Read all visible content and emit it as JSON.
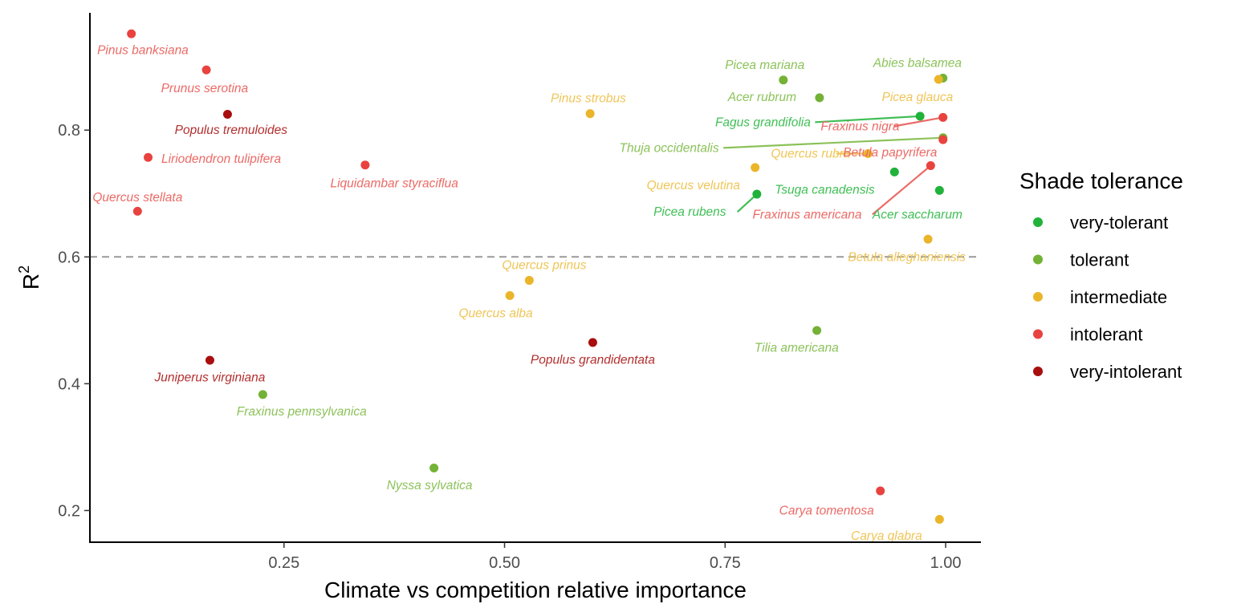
{
  "chart_data": {
    "type": "scatter",
    "xlabel": "Climate vs competition relative importance",
    "ylabel_base": "R",
    "ylabel_sup": "2",
    "xlim": [
      0.03,
      1.04
    ],
    "ylim": [
      0.15,
      0.985
    ],
    "x_ticks": [
      0.25,
      0.5,
      0.75,
      1.0
    ],
    "x_tick_labels": [
      "0.25",
      "0.50",
      "0.75",
      "1.00"
    ],
    "y_ticks": [
      0.2,
      0.4,
      0.6,
      0.8
    ],
    "y_tick_labels": [
      "0.2",
      "0.4",
      "0.6",
      "0.8"
    ],
    "reference_line_y": 0.6,
    "grid": false,
    "legend": {
      "title": "Shade tolerance",
      "position": "right",
      "entries": [
        {
          "key": "very-tolerant",
          "label": "very-tolerant"
        },
        {
          "key": "tolerant",
          "label": "tolerant"
        },
        {
          "key": "intermediate",
          "label": "intermediate"
        },
        {
          "key": "intolerant",
          "label": "intolerant"
        },
        {
          "key": "very-intolerant",
          "label": "very-intolerant"
        }
      ]
    },
    "colors": {
      "very-tolerant": {
        "point": "#20b23a",
        "label": "#3fbf55"
      },
      "tolerant": {
        "point": "#73b236",
        "label": "#8cc25a"
      },
      "intermediate": {
        "point": "#ebb52a",
        "label": "#efc557"
      },
      "intolerant": {
        "point": "#e8433f",
        "label": "#eb6a66"
      },
      "very-intolerant": {
        "point": "#a80e0e",
        "label": "#b32e2e"
      }
    },
    "points": [
      {
        "name": "Pinus banksiana",
        "x": 0.077,
        "y": 0.952,
        "tol": "intolerant",
        "lx": 0.09,
        "ly": 0.926,
        "anchor": "middle"
      },
      {
        "name": "Prunus serotina",
        "x": 0.162,
        "y": 0.895,
        "tol": "intolerant",
        "lx": 0.16,
        "ly": 0.866,
        "anchor": "middle"
      },
      {
        "name": "Populus tremuloides",
        "x": 0.186,
        "y": 0.825,
        "tol": "very-intolerant",
        "lx": 0.19,
        "ly": 0.8,
        "anchor": "middle"
      },
      {
        "name": "Liriodendron tulipifera",
        "x": 0.096,
        "y": 0.757,
        "tol": "intolerant",
        "lx": 0.111,
        "ly": 0.755,
        "anchor": "start"
      },
      {
        "name": "Quercus stellata",
        "x": 0.084,
        "y": 0.672,
        "tol": "intolerant",
        "lx": 0.084,
        "ly": 0.694,
        "anchor": "middle"
      },
      {
        "name": "Liquidambar styraciflua",
        "x": 0.342,
        "y": 0.745,
        "tol": "intolerant",
        "lx": 0.375,
        "ly": 0.716,
        "anchor": "middle"
      },
      {
        "name": "Juniperus virginiana",
        "x": 0.166,
        "y": 0.437,
        "tol": "very-intolerant",
        "lx": 0.166,
        "ly": 0.41,
        "anchor": "middle"
      },
      {
        "name": "Fraxinus pennsylvanica",
        "x": 0.226,
        "y": 0.383,
        "tol": "tolerant",
        "lx": 0.27,
        "ly": 0.356,
        "anchor": "middle"
      },
      {
        "name": "Nyssa sylvatica",
        "x": 0.42,
        "y": 0.267,
        "tol": "tolerant",
        "lx": 0.415,
        "ly": 0.24,
        "anchor": "middle"
      },
      {
        "name": "Pinus strobus",
        "x": 0.597,
        "y": 0.826,
        "tol": "intermediate",
        "lx": 0.595,
        "ly": 0.85,
        "anchor": "middle"
      },
      {
        "name": "Quercus prinus",
        "x": 0.528,
        "y": 0.563,
        "tol": "intermediate",
        "lx": 0.545,
        "ly": 0.587,
        "anchor": "middle"
      },
      {
        "name": "Quercus alba",
        "x": 0.506,
        "y": 0.539,
        "tol": "intermediate",
        "lx": 0.49,
        "ly": 0.511,
        "anchor": "middle"
      },
      {
        "name": "Populus grandidentata",
        "x": 0.6,
        "y": 0.465,
        "tol": "very-intolerant",
        "lx": 0.6,
        "ly": 0.438,
        "anchor": "middle"
      },
      {
        "name": "Picea mariana",
        "x": 0.816,
        "y": 0.879,
        "tol": "tolerant",
        "lx": 0.795,
        "ly": 0.903,
        "anchor": "middle"
      },
      {
        "name": "Acer rubrum",
        "x": 0.857,
        "y": 0.851,
        "tol": "tolerant",
        "lx": 0.792,
        "ly": 0.852,
        "anchor": "middle"
      },
      {
        "name": "Abies balsamea",
        "x": 0.997,
        "y": 0.882,
        "tol": "tolerant",
        "lx": 0.968,
        "ly": 0.906,
        "anchor": "middle"
      },
      {
        "name": "Picea glauca",
        "x": 0.992,
        "y": 0.88,
        "tol": "intermediate",
        "lx": 0.968,
        "ly": 0.852,
        "anchor": "middle"
      },
      {
        "name": "Fagus grandifolia",
        "x": 0.971,
        "y": 0.822,
        "tol": "very-tolerant",
        "lx": 0.847,
        "ly": 0.8125,
        "anchor": "end",
        "line_from_x": 0.852
      },
      {
        "name": "Fraxinus nigra",
        "x": 0.997,
        "y": 0.82,
        "tol": "intolerant",
        "lx": 0.903,
        "ly": 0.806,
        "anchor": "middle",
        "line_from_x": 0.941
      },
      {
        "name": "Thuja occidentalis",
        "x": 0.997,
        "y": 0.788,
        "tol": "tolerant",
        "lx": 0.743,
        "ly": 0.772,
        "anchor": "end",
        "line_from_x": 0.748
      },
      {
        "name": "Quercus rubra",
        "x": 0.912,
        "y": 0.763,
        "tol": "intermediate",
        "lx": 0.847,
        "ly": 0.763,
        "anchor": "middle",
        "line_from_x": 0.876
      },
      {
        "name": "Betula papyrifera",
        "x": 0.997,
        "y": 0.785,
        "tol": "intolerant",
        "lx": 0.937,
        "ly": 0.765,
        "anchor": "middle"
      },
      {
        "name": "Quercus velutina",
        "x": 0.784,
        "y": 0.741,
        "tol": "intermediate",
        "lx": 0.714,
        "ly": 0.713,
        "anchor": "middle"
      },
      {
        "name": "Tsuga canadensis",
        "x": 0.942,
        "y": 0.734,
        "tol": "very-tolerant",
        "lx": 0.863,
        "ly": 0.706,
        "anchor": "middle"
      },
      {
        "name": "Picea rubens",
        "x": 0.786,
        "y": 0.699,
        "tol": "very-tolerant",
        "lx": 0.71,
        "ly": 0.671,
        "anchor": "middle",
        "line_from_x": 0.764
      },
      {
        "name": "Fraxinus americana",
        "x": 0.983,
        "y": 0.744,
        "tol": "intolerant",
        "lx": 0.843,
        "ly": 0.667,
        "anchor": "middle",
        "line_from_x": 0.917
      },
      {
        "name": "Acer saccharum",
        "x": 0.993,
        "y": 0.705,
        "tol": "very-tolerant",
        "lx": 0.968,
        "ly": 0.667,
        "anchor": "middle"
      },
      {
        "name": "Betula alleghaniensis",
        "x": 0.98,
        "y": 0.628,
        "tol": "intermediate",
        "lx": 0.956,
        "ly": 0.6,
        "anchor": "middle"
      },
      {
        "name": "Tilia americana",
        "x": 0.854,
        "y": 0.484,
        "tol": "tolerant",
        "lx": 0.831,
        "ly": 0.457,
        "anchor": "middle"
      },
      {
        "name": "Carya tomentosa",
        "x": 0.926,
        "y": 0.231,
        "tol": "intolerant",
        "lx": 0.865,
        "ly": 0.2,
        "anchor": "middle"
      },
      {
        "name": "Carya glabra",
        "x": 0.993,
        "y": 0.186,
        "tol": "intermediate",
        "lx": 0.933,
        "ly": 0.16,
        "anchor": "middle"
      }
    ]
  }
}
